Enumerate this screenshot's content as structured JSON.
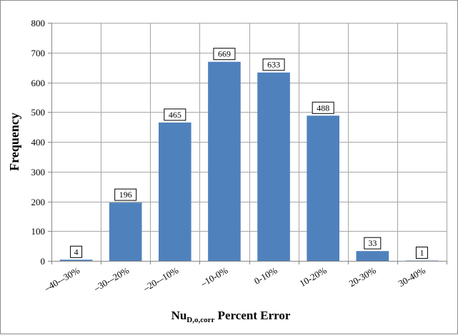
{
  "chart_data": {
    "type": "bar",
    "categories": [
      "–40-–30%",
      "–30-–20%",
      "–20-–10%",
      "–10-0%",
      "0-10%",
      "10-20%",
      "20-30%",
      "30-40%"
    ],
    "values": [
      4,
      196,
      465,
      669,
      633,
      488,
      33,
      1
    ],
    "xlabel_main": "Nu",
    "xlabel_subscript": "D,o,corr",
    "xlabel_rest": " Percent Error",
    "ylabel": "Frequency",
    "ylim": [
      0,
      800
    ],
    "yticks": [
      0,
      100,
      200,
      300,
      400,
      500,
      600,
      700,
      800
    ],
    "grid": true,
    "legend": "none",
    "bar_color": "#4f81bd",
    "grid_color": "#a6a6a6"
  }
}
